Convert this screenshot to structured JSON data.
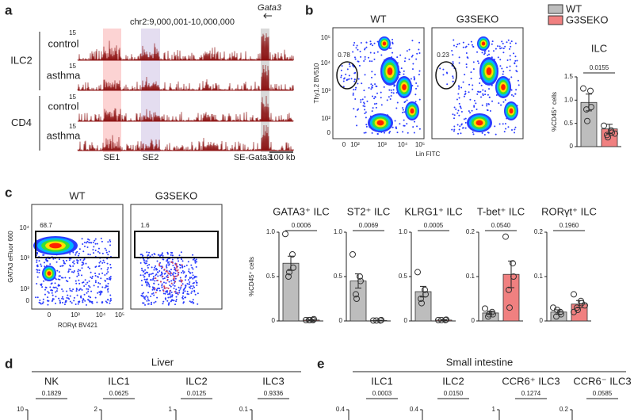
{
  "panel_labels": [
    "a",
    "b",
    "c",
    "d",
    "e"
  ],
  "genome": {
    "region": "chr2:9,000,001-10,000,000",
    "gene": "Gata3",
    "groups": [
      {
        "name": "ILC2",
        "tracks": [
          "control",
          "asthma"
        ]
      },
      {
        "name": "CD4",
        "tracks": [
          "control",
          "asthma"
        ]
      }
    ],
    "track_scale": "15",
    "elements": [
      "SE1",
      "SE2",
      "SE-Gata3"
    ],
    "scale_bar": "100 kb"
  },
  "flow_b": {
    "plots": [
      {
        "title": "WT",
        "gate": "0.78"
      },
      {
        "title": "G3SEKO",
        "gate": "0.23"
      }
    ],
    "y_label": "Thy1.2 BV510",
    "x_label": "Lin FITC",
    "y_ticks": [
      "10⁵",
      "10⁴",
      "10³",
      "10²",
      "0"
    ],
    "x_ticks": [
      "0",
      "10²",
      "10³",
      "10⁴",
      "10⁵"
    ]
  },
  "flow_c": {
    "plots": [
      {
        "title": "WT",
        "gate": "68.7"
      },
      {
        "title": "G3SEKO",
        "gate": "1.6"
      }
    ],
    "y_label": "GATA3 eFluor 660",
    "x_label": "RORγt BV421",
    "y_ticks": [
      "10⁴",
      "10³",
      "10²",
      "0"
    ],
    "x_ticks": [
      "0",
      "10³",
      "10⁴",
      "10⁵"
    ]
  },
  "cut_panels": [
    {
      "title": "Liver",
      "items": [
        {
          "name": "NK",
          "p": "0.1829",
          "top_tick": "10"
        },
        {
          "name": "ILC1",
          "p": "0.0625",
          "top_tick": "2"
        },
        {
          "name": "ILC2",
          "p": "0.0125",
          "top_tick": "1"
        },
        {
          "name": "ILC3",
          "p": "0.9336",
          "top_tick": "0.1"
        }
      ]
    },
    {
      "title": "Small intestine",
      "items": [
        {
          "name": "ILC1",
          "p": "0.0003",
          "top_tick": "0.4"
        },
        {
          "name": "ILC2",
          "p": "0.0150",
          "top_tick": "0.4"
        },
        {
          "name": "CCR6⁺ ILC3",
          "p": "0.1274",
          "top_tick": "1"
        },
        {
          "name": "CCR6⁻ ILC3",
          "p": "0.0585",
          "top_tick": "0.2"
        }
      ]
    }
  ],
  "chart_data": [
    {
      "type": "bar",
      "title": "ILC",
      "y_label": "%CD45⁺ cells",
      "annotation": "0.0155",
      "ylim": [
        0,
        1.5
      ],
      "yticks": [
        0,
        0.5,
        {
          "value": 1,
          "label": "1.0"
        },
        1.5
      ],
      "series": [
        {
          "name": "WT",
          "color": "#bdbdbd",
          "values": [
            0.95
          ],
          "errors": [
            0.18
          ],
          "points": [
            1.25,
            1.2,
            0.85,
            0.8,
            0.55
          ]
        },
        {
          "name": "G3SEKO",
          "color": "#f08080",
          "values": [
            0.38
          ],
          "errors": [
            0.1
          ],
          "points": [
            0.45,
            0.35,
            0.3,
            0.25,
            0.2,
            0.28
          ]
        }
      ]
    },
    {
      "type": "bar",
      "title": "GATA3⁺ ILC",
      "y_label": "%CD45⁺ cells",
      "annotation": "0.0006",
      "ylim": [
        0,
        1
      ],
      "yticks": [
        0,
        0.5,
        {
          "value": 1,
          "label": "1.0"
        }
      ],
      "series": [
        {
          "color": "#bdbdbd",
          "values": [
            0.65
          ],
          "errors": [
            0.08
          ],
          "points": [
            0.98,
            0.75,
            0.6,
            0.5,
            0.55
          ]
        },
        {
          "color": "#f08080",
          "values": [
            0.01
          ],
          "errors": [
            0.005
          ],
          "points": [
            0.01,
            0.01,
            0.02,
            0.01,
            0.01
          ]
        }
      ]
    },
    {
      "type": "bar",
      "title": "ST2⁺ ILC",
      "annotation": "0.0069",
      "ylim": [
        0,
        1
      ],
      "yticks": [
        0,
        0.5,
        {
          "value": 1,
          "label": "1.0"
        }
      ],
      "series": [
        {
          "color": "#bdbdbd",
          "values": [
            0.45
          ],
          "errors": [
            0.08
          ],
          "points": [
            0.75,
            0.5,
            0.45,
            0.3,
            0.25
          ]
        },
        {
          "color": "#f08080",
          "values": [
            0.005
          ],
          "errors": [
            0.003
          ],
          "points": [
            0.005,
            0.005,
            0.01,
            0.005
          ]
        }
      ]
    },
    {
      "type": "bar",
      "title": "KLRG1⁺ ILC",
      "annotation": "0.0005",
      "ylim": [
        0,
        1
      ],
      "yticks": [
        0,
        0.5,
        {
          "value": 1,
          "label": "1.0"
        }
      ],
      "series": [
        {
          "color": "#bdbdbd",
          "values": [
            0.33
          ],
          "errors": [
            0.06
          ],
          "points": [
            0.55,
            0.35,
            0.3,
            0.25,
            0.2
          ]
        },
        {
          "color": "#f08080",
          "values": [
            0.01
          ],
          "errors": [
            0.004
          ],
          "points": [
            0.01,
            0.01,
            0.015,
            0.01
          ]
        }
      ]
    },
    {
      "type": "bar",
      "title": "T-bet⁺ ILC",
      "annotation": "0.0540",
      "ylim": [
        0,
        0.2
      ],
      "yticks": [
        0,
        0.1,
        0.2
      ],
      "series": [
        {
          "color": "#bdbdbd",
          "values": [
            0.018
          ],
          "errors": [
            0.004
          ],
          "points": [
            0.028,
            0.02,
            0.015,
            0.01,
            0.015
          ]
        },
        {
          "color": "#f08080",
          "values": [
            0.105
          ],
          "errors": [
            0.03
          ],
          "points": [
            0.19,
            0.13,
            0.1,
            0.07,
            0.03
          ]
        }
      ]
    },
    {
      "type": "bar",
      "title": "RORγt⁺ ILC",
      "annotation": "0.1960",
      "ylim": [
        0,
        0.2
      ],
      "yticks": [
        0,
        0.1,
        0.2
      ],
      "series": [
        {
          "color": "#bdbdbd",
          "values": [
            0.02
          ],
          "errors": [
            0.005
          ],
          "points": [
            0.03,
            0.02,
            0.015,
            0.01,
            0.025
          ]
        },
        {
          "color": "#f08080",
          "values": [
            0.038
          ],
          "errors": [
            0.008
          ],
          "points": [
            0.06,
            0.045,
            0.04,
            0.03,
            0.025,
            0.035,
            0.02
          ]
        }
      ]
    }
  ]
}
